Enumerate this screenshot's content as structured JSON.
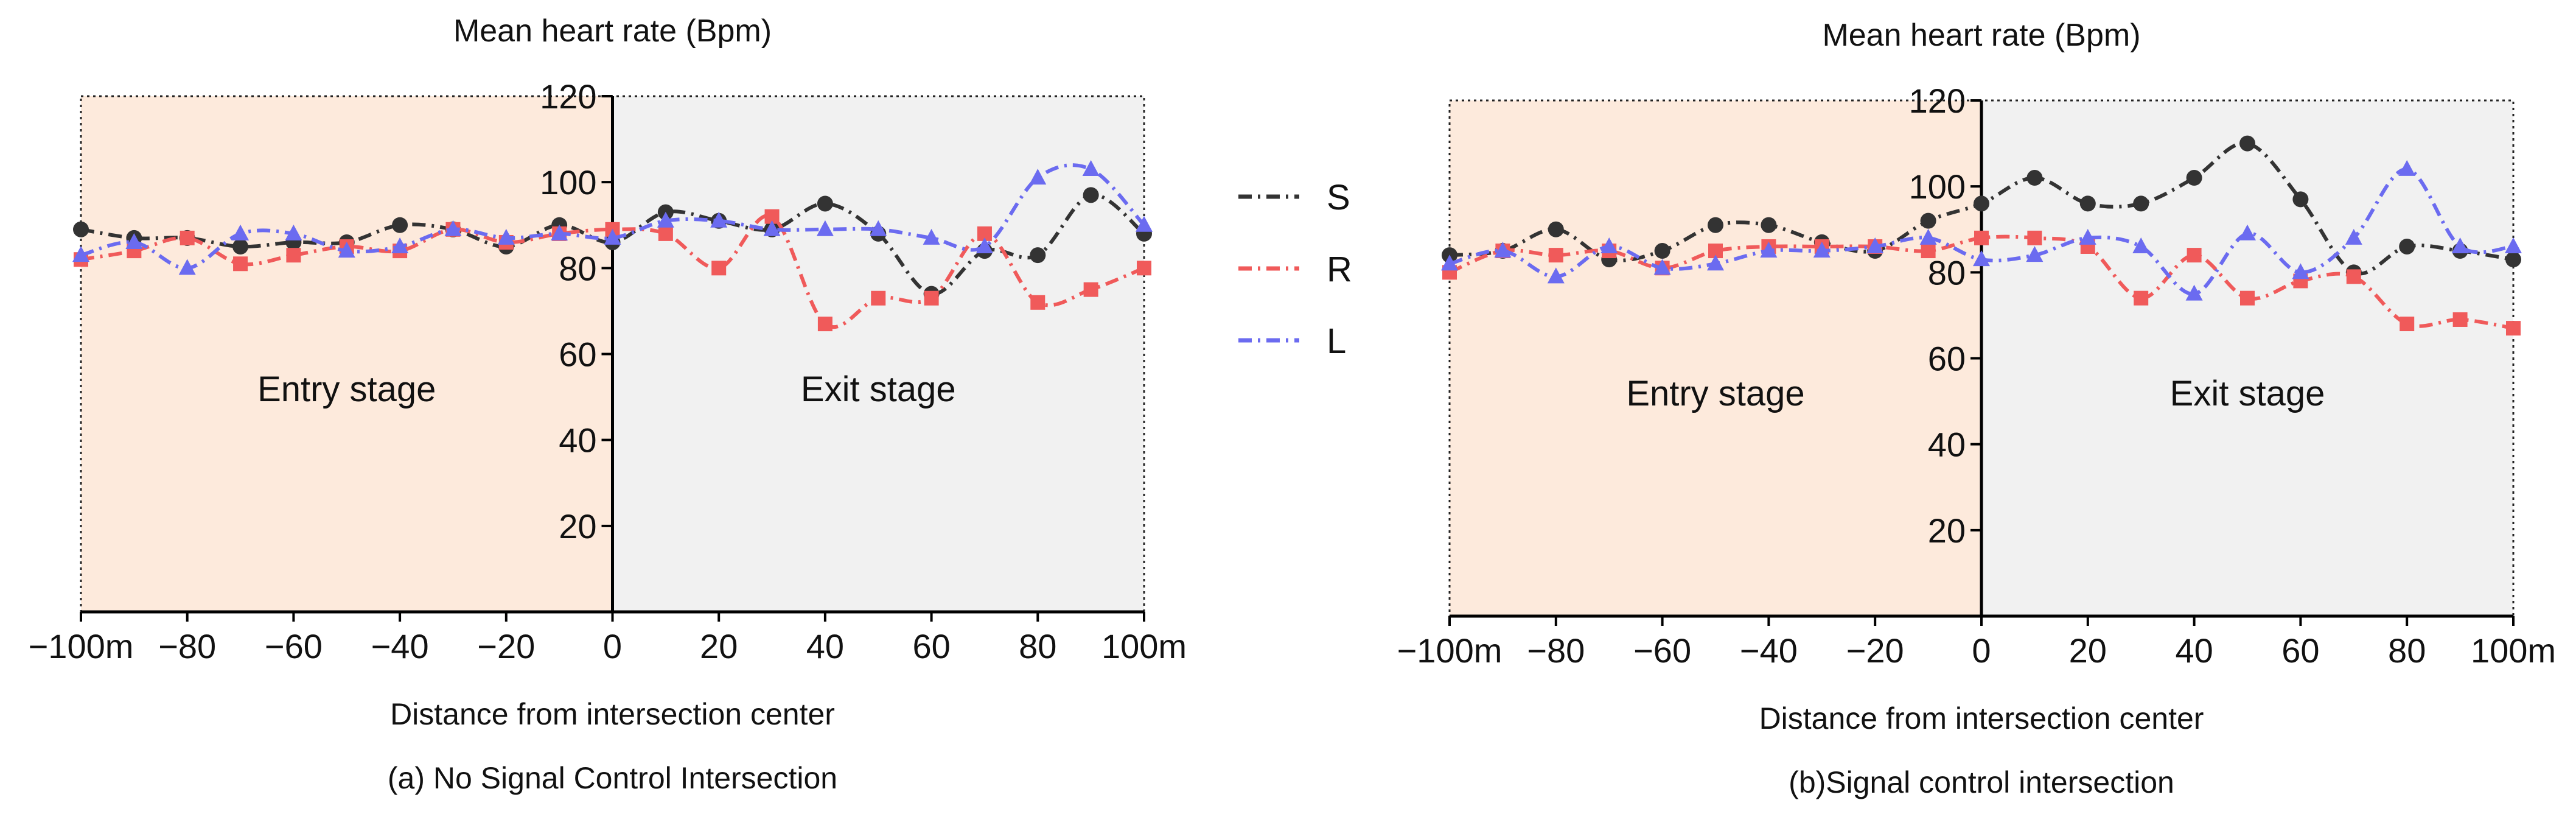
{
  "legend": [
    {
      "key": "S",
      "label": "S",
      "color": "#333333",
      "dash": "22 10 4 10",
      "marker": "circle"
    },
    {
      "key": "R",
      "label": "R",
      "color": "#f05a5a",
      "dash": "22 10 4 10",
      "marker": "square"
    },
    {
      "key": "L",
      "label": "L",
      "color": "#6b6bf0",
      "dash": "22 10 4 10",
      "marker": "triangle"
    }
  ],
  "colors": {
    "entry_bg": "#fdeadc",
    "exit_bg": "#f1f1f1",
    "S": "#333333",
    "R": "#f05a5a",
    "L": "#6b6bf0"
  },
  "chart_data": [
    {
      "type": "line",
      "panel": "a",
      "title": "Mean heart rate (Bpm)",
      "xlabel": "Distance from intersection center",
      "caption": "(a) No Signal Control Intersection",
      "ylabel": "",
      "xlim": [
        -100,
        100
      ],
      "ylim": [
        0,
        120
      ],
      "grid": false,
      "x": [
        -100,
        -90,
        -80,
        -70,
        -60,
        -50,
        -40,
        -30,
        -20,
        -10,
        0,
        10,
        20,
        30,
        40,
        50,
        60,
        70,
        80,
        90,
        100
      ],
      "x_tick_labels": [
        "−100m",
        "−80",
        "−60",
        "−40",
        "−20",
        "0",
        "20",
        "40",
        "60",
        "80",
        "100m"
      ],
      "x_tick_values": [
        -100,
        -80,
        -60,
        -40,
        -20,
        0,
        20,
        40,
        60,
        80,
        100
      ],
      "y_tick_labels": [
        "20",
        "40",
        "60",
        "80",
        "100",
        "120"
      ],
      "y_tick_values": [
        20,
        40,
        60,
        80,
        100,
        120
      ],
      "regions": [
        {
          "label": "Entry stage",
          "from": -100,
          "to": 0
        },
        {
          "label": "Exit stage",
          "from": 0,
          "to": 100
        }
      ],
      "series": [
        {
          "name": "S",
          "values": [
            89,
            87,
            87,
            85,
            86,
            86,
            90,
            89,
            85,
            90,
            86,
            93,
            91,
            89,
            95,
            88,
            74,
            84,
            83,
            97,
            88
          ]
        },
        {
          "name": "R",
          "values": [
            82,
            84,
            87,
            81,
            83,
            85,
            84,
            89,
            86,
            88,
            89,
            88,
            80,
            92,
            67,
            73,
            73,
            88,
            72,
            75,
            80
          ]
        },
        {
          "name": "L",
          "values": [
            83,
            86,
            80,
            88,
            88,
            84,
            85,
            89,
            87,
            88,
            87,
            91,
            91,
            89,
            89,
            89,
            87,
            85,
            101,
            103,
            90
          ]
        }
      ]
    },
    {
      "type": "line",
      "panel": "b",
      "title": "Mean heart rate (Bpm)",
      "xlabel": "Distance from intersection center",
      "caption": "(b)Signal control intersection",
      "ylabel": "",
      "xlim": [
        -100,
        100
      ],
      "ylim": [
        0,
        120
      ],
      "grid": false,
      "x": [
        -100,
        -90,
        -80,
        -70,
        -60,
        -50,
        -40,
        -30,
        -20,
        -10,
        0,
        10,
        20,
        30,
        40,
        50,
        60,
        70,
        80,
        90,
        100
      ],
      "x_tick_labels": [
        "−100m",
        "−80",
        "−60",
        "−40",
        "−20",
        "0",
        "20",
        "40",
        "60",
        "80",
        "100m"
      ],
      "x_tick_values": [
        -100,
        -80,
        -60,
        -40,
        -20,
        0,
        20,
        40,
        60,
        80,
        100
      ],
      "y_tick_labels": [
        "20",
        "40",
        "60",
        "80",
        "100",
        "120"
      ],
      "y_tick_values": [
        20,
        40,
        60,
        80,
        100,
        120
      ],
      "regions": [
        {
          "label": "Entry stage",
          "from": -100,
          "to": 0
        },
        {
          "label": "Exit stage",
          "from": 0,
          "to": 100
        }
      ],
      "series": [
        {
          "name": "S",
          "values": [
            84,
            85,
            90,
            83,
            85,
            91,
            91,
            87,
            85,
            92,
            96,
            102,
            96,
            96,
            102,
            110,
            97,
            80,
            86,
            85,
            83
          ]
        },
        {
          "name": "R",
          "values": [
            80,
            85,
            84,
            85,
            81,
            85,
            86,
            86,
            86,
            85,
            88,
            88,
            86,
            74,
            84,
            74,
            78,
            79,
            68,
            69,
            67
          ]
        },
        {
          "name": "L",
          "values": [
            82,
            85,
            79,
            86,
            81,
            82,
            85,
            85,
            86,
            88,
            83,
            84,
            88,
            86,
            75,
            89,
            80,
            88,
            104,
            86,
            86
          ]
        }
      ]
    }
  ]
}
